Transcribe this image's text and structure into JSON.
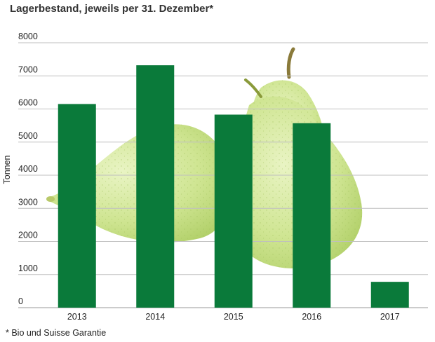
{
  "chart_data": {
    "type": "bar",
    "title": "Lagerbestand, jeweils per 31. Dezember*",
    "ylabel": "Tonnen",
    "xlabel": "",
    "categories": [
      "2013",
      "2014",
      "2015",
      "2016",
      "2017"
    ],
    "values": [
      6150,
      7320,
      5830,
      5570,
      780
    ],
    "ylim": [
      0,
      8000
    ],
    "yticks": [
      0,
      1000,
      2000,
      3000,
      4000,
      5000,
      6000,
      7000,
      8000
    ],
    "grid": true,
    "bar_color": "#0a7a3a",
    "footnote": "* Bio und Suisse Garantie"
  },
  "colors": {
    "grid": "#bfbfbf",
    "pear_light": "#d8eba3",
    "pear_mid": "#c2de7c",
    "stem": "#8a7a3a"
  }
}
